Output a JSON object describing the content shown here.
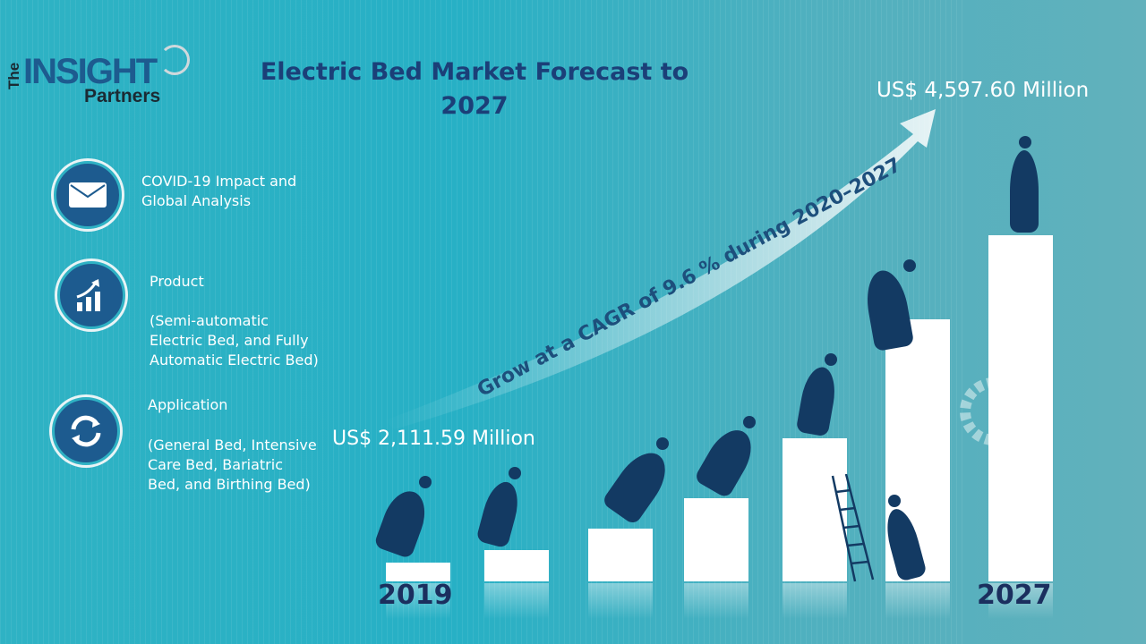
{
  "logo": {
    "the": "The",
    "insight": "INSIGHT",
    "partners": "Partners"
  },
  "title": "Electric Bed Market Forecast to 2027",
  "segments": [
    {
      "icon": "envelope-icon",
      "text": "COVID-19 Impact and\nGlobal Analysis"
    },
    {
      "icon": "growth-chart-icon",
      "heading": "Product",
      "text": "(Semi-automatic\nElectric Bed, and Fully\nAutomatic Electric Bed)"
    },
    {
      "icon": "refresh-arrows-icon",
      "heading": "Application",
      "text": "(General Bed, Intensive\nCare Bed, Bariatric\nBed, and Birthing Bed)"
    }
  ],
  "start_value": "US$ 2,111.59 Million",
  "end_value": "US$ 4,597.60 Million",
  "start_year": "2019",
  "end_year": "2027",
  "cagr_text": "Grow at a CAGR of 9.6 % during 2020–2027",
  "colors": {
    "title": "#1b3f78",
    "bars": "#ffffff",
    "figures": "#133a63",
    "background": "#2fb2c4"
  }
}
